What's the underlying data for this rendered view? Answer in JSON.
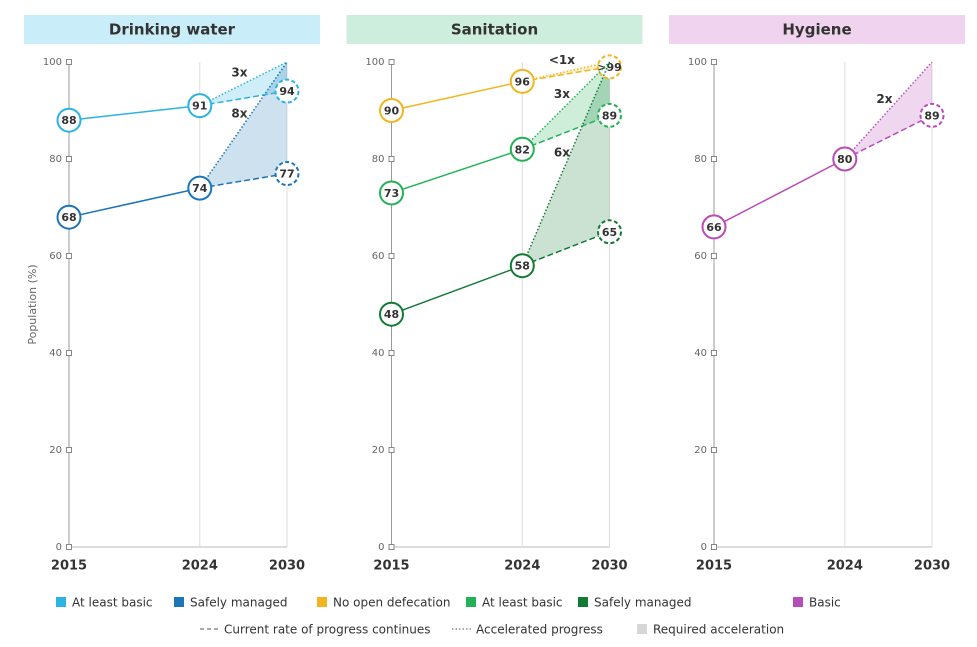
{
  "chart_data": [
    {
      "type": "line",
      "title": "Drinking water",
      "ylabel": "Population (%)",
      "x": [
        2015,
        2024,
        2030
      ],
      "xlim": [
        2015,
        2030
      ],
      "xticks": [
        2015,
        2024,
        2030
      ],
      "ylim": [
        0,
        100
      ],
      "yticks": [
        0,
        20,
        40,
        60,
        80,
        100
      ],
      "series": [
        {
          "name": "At least basic",
          "color": "#2bb3e1",
          "values": [
            88,
            91,
            94
          ],
          "target": 100,
          "acceleration": "3x"
        },
        {
          "name": "Safely managed",
          "color": "#1b75b8",
          "values": [
            68,
            74,
            77
          ],
          "target": 100,
          "acceleration": "8x"
        }
      ]
    },
    {
      "type": "line",
      "title": "Sanitation",
      "x": [
        2015,
        2024,
        2030
      ],
      "xlim": [
        2015,
        2030
      ],
      "xticks": [
        2015,
        2024,
        2030
      ],
      "ylim": [
        0,
        100
      ],
      "yticks": [
        0,
        20,
        40,
        60,
        80,
        100
      ],
      "series": [
        {
          "name": "No open defecation",
          "color": "#f2b51f",
          "values": [
            90,
            96,
            99
          ],
          "value_labels": [
            "90",
            "96",
            ">99"
          ],
          "target": 100,
          "acceleration": "<1x"
        },
        {
          "name": "At least basic",
          "color": "#22b255",
          "values": [
            73,
            82,
            89
          ],
          "target": 100,
          "acceleration": "3x"
        },
        {
          "name": "Safely managed",
          "color": "#137a36",
          "values": [
            48,
            58,
            65
          ],
          "target": 100,
          "acceleration": "6x"
        }
      ]
    },
    {
      "type": "line",
      "title": "Hygiene",
      "x": [
        2015,
        2024,
        2030
      ],
      "xlim": [
        2015,
        2030
      ],
      "xticks": [
        2015,
        2024,
        2030
      ],
      "ylim": [
        0,
        100
      ],
      "yticks": [
        0,
        20,
        40,
        60,
        80,
        100
      ],
      "series": [
        {
          "name": "Basic",
          "color": "#b84cb8",
          "values": [
            66,
            80,
            89
          ],
          "target": 100,
          "acceleration": "2x"
        }
      ]
    }
  ],
  "legend": {
    "items": [
      "Current rate of progress continues",
      "Accelerated progress",
      "Required acceleration"
    ]
  }
}
